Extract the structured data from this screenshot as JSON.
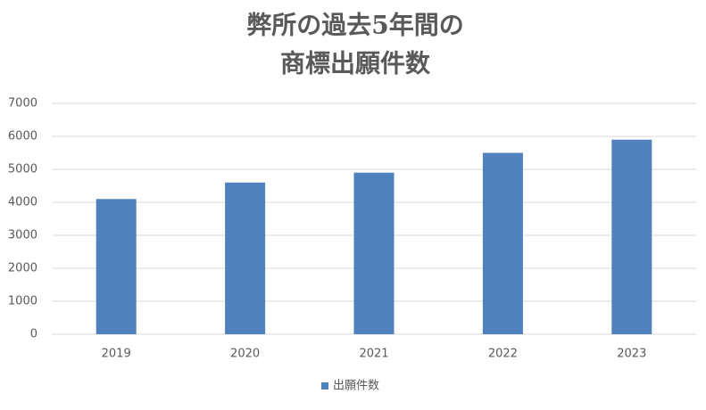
{
  "chart_data": {
    "type": "bar",
    "title": [
      "弊所の過去5年間の",
      "商標出願件数"
    ],
    "categories": [
      "2019",
      "2020",
      "2021",
      "2022",
      "2023"
    ],
    "series": [
      {
        "name": "出願件数",
        "color": "#4f81bd",
        "values": [
          4100,
          4600,
          4900,
          5500,
          5900
        ]
      }
    ],
    "ylim": [
      0,
      7000
    ],
    "yticks": [
      0,
      1000,
      2000,
      3000,
      4000,
      5000,
      6000,
      7000
    ],
    "grid": true,
    "legend": "bottom"
  }
}
